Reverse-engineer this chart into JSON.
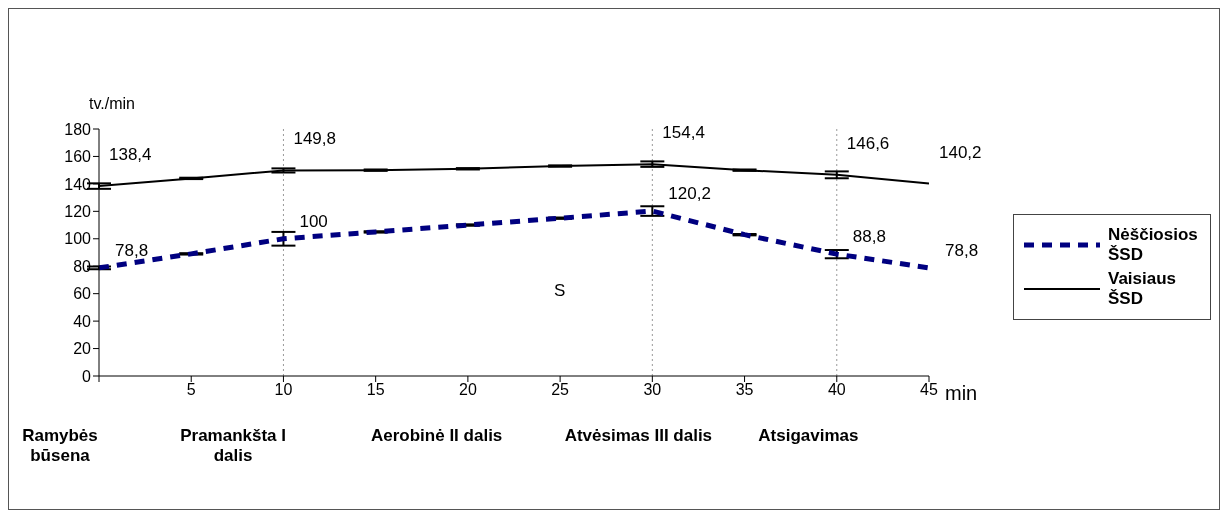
{
  "chart_data": {
    "type": "line",
    "xlabel": "min",
    "ylabel": "tv./min",
    "x": [
      0,
      5,
      10,
      15,
      20,
      25,
      30,
      35,
      40,
      45
    ],
    "series": [
      {
        "name": "Nėščiosios ŠSD",
        "color": "#000080",
        "line_style": "dashed",
        "values": [
          78.8,
          89,
          100,
          105,
          110,
          115,
          120.2,
          103,
          88.8,
          78.8
        ],
        "errors": [
          1,
          0.5,
          5,
          0.5,
          0.5,
          0.5,
          3.5,
          0.5,
          3,
          null
        ],
        "value_labels": [
          "78,8",
          null,
          "100",
          null,
          null,
          null,
          "120,2",
          null,
          "88,8",
          "78,8"
        ]
      },
      {
        "name": "Vaisiaus ŠSD",
        "color": "#000000",
        "line_style": "solid",
        "values": [
          138.4,
          144,
          149.8,
          150,
          151,
          153,
          154.4,
          150,
          146.6,
          140.2
        ],
        "errors": [
          2,
          0.5,
          1.5,
          0.5,
          0.5,
          0.5,
          2,
          0.5,
          2.5,
          null
        ],
        "value_labels": [
          "138,4",
          null,
          "149,8",
          null,
          null,
          null,
          "154,4",
          null,
          "146,6",
          "140,2"
        ]
      }
    ],
    "xlim": [
      0,
      45
    ],
    "xticks": [
      {
        "value": 0,
        "label": null
      },
      5,
      10,
      15,
      20,
      25,
      30,
      35,
      40,
      45
    ],
    "ylim": [
      0,
      180
    ],
    "yticks": [
      0,
      20,
      40,
      60,
      80,
      100,
      120,
      140,
      160,
      180
    ],
    "grid": false,
    "legend": "right",
    "marker": "none",
    "ref_lines": [
      {
        "axis": "x",
        "value": 10,
        "color": "#999999",
        "line_style": "dotted"
      },
      {
        "axis": "x",
        "value": 30,
        "color": "#999999",
        "line_style": "dotted"
      },
      {
        "axis": "x",
        "value": 40,
        "color": "#999999",
        "line_style": "dotted"
      }
    ],
    "annotations": [
      "S",
      "Ramybės būsena",
      "Pramankšta I dalis",
      "Aerobinė II dalis",
      "Atvėsimas III dalis",
      "Atsigavimas"
    ]
  }
}
